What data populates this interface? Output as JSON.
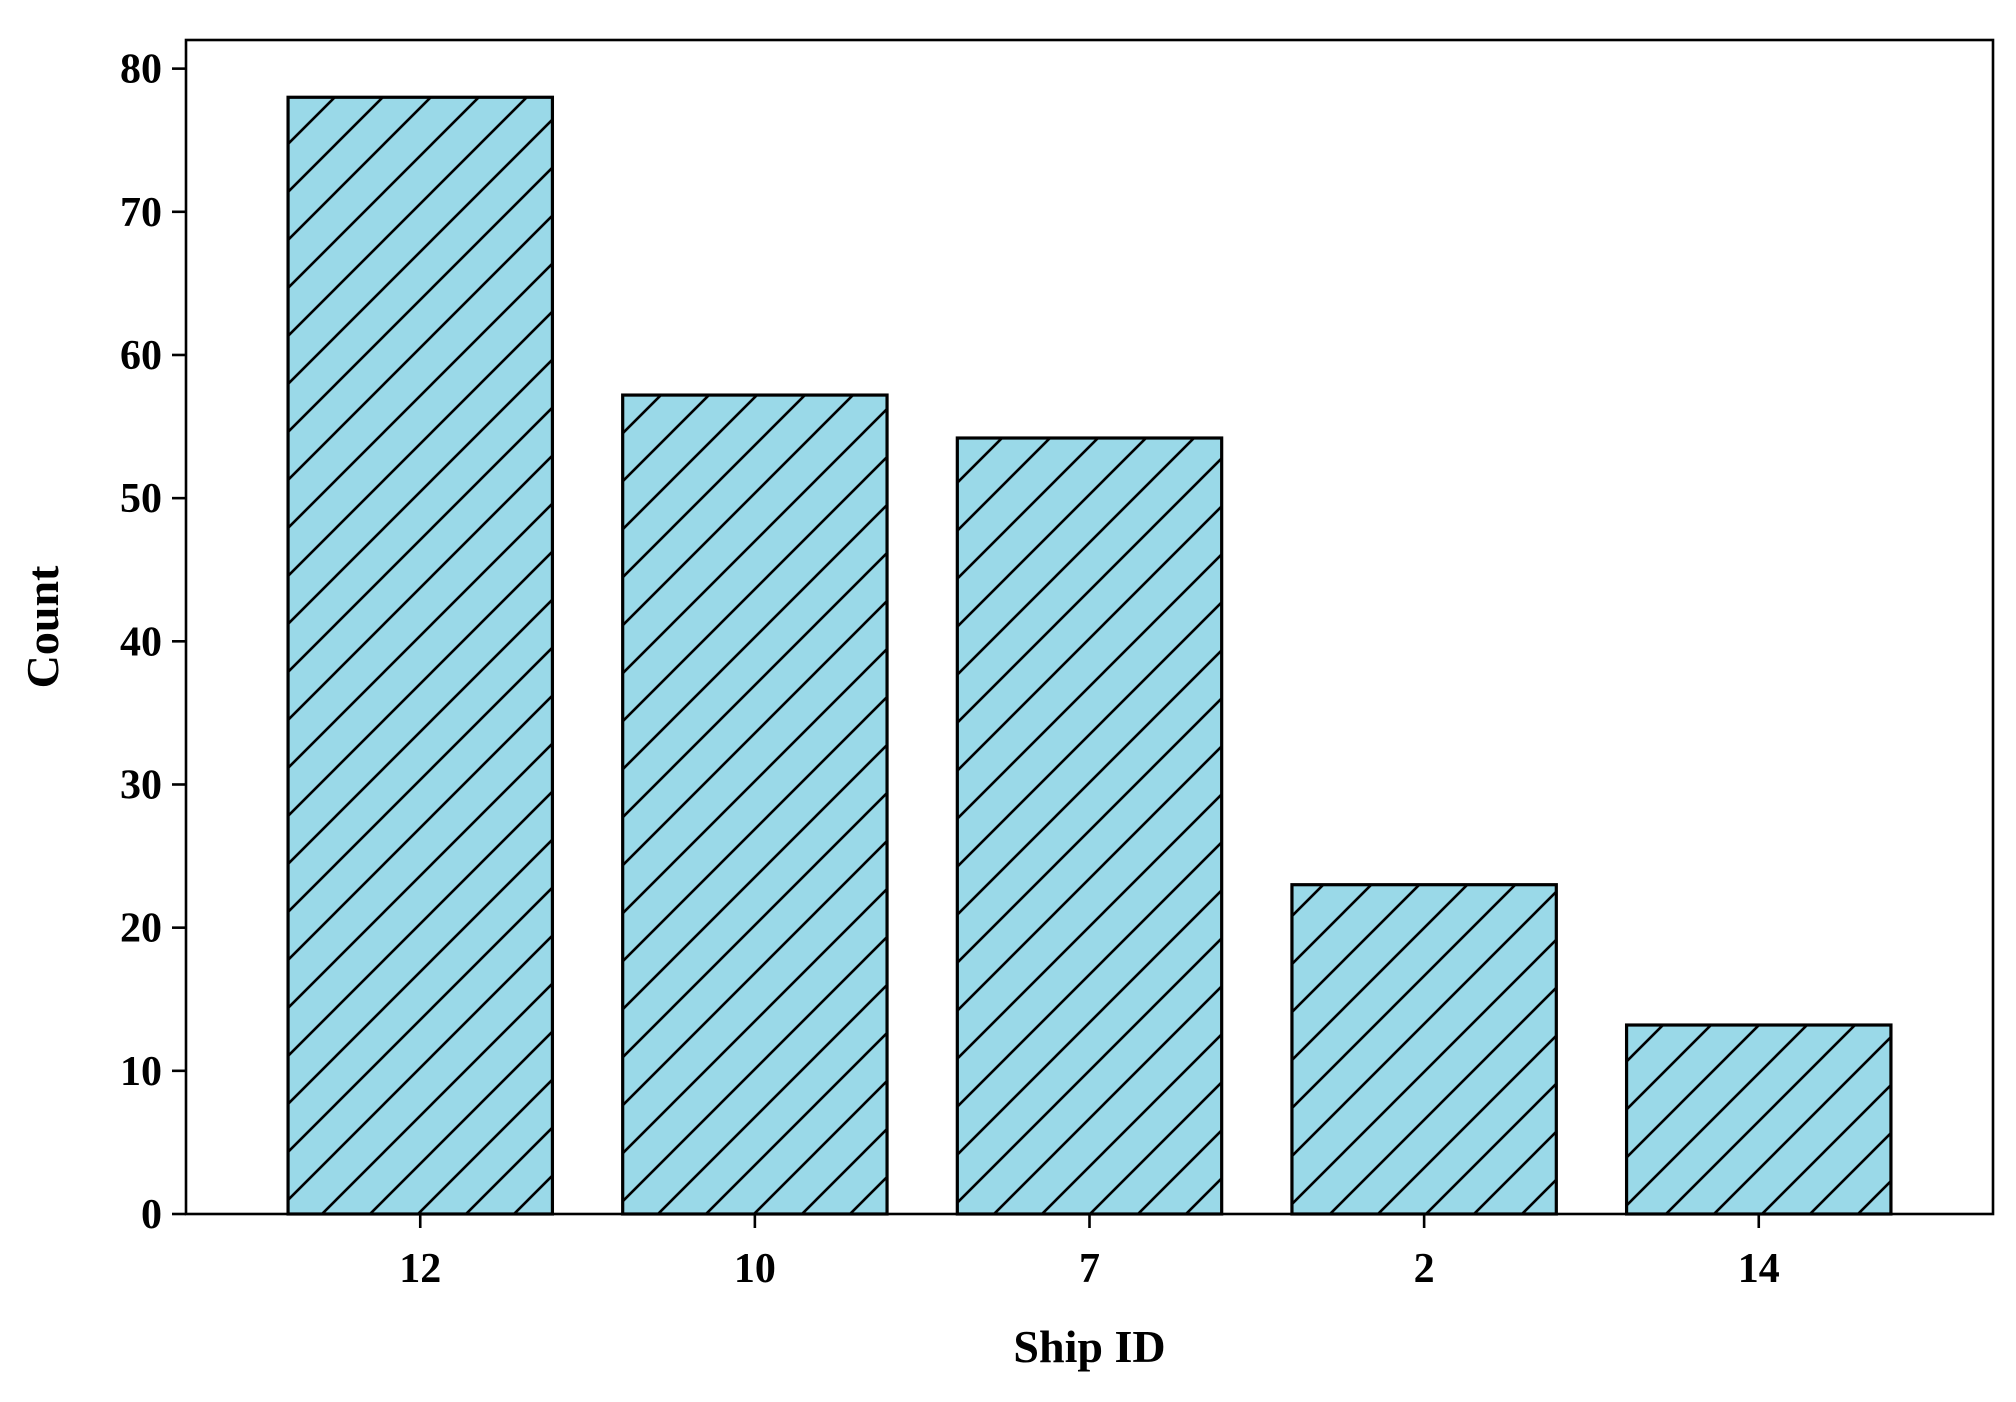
{
  "chart_data": {
    "type": "bar",
    "categories": [
      "12",
      "10",
      "7",
      "2",
      "14"
    ],
    "values": [
      78,
      57.2,
      54.2,
      23,
      13.2
    ],
    "xlabel": "Ship ID",
    "ylabel": "Count",
    "ylim": [
      0,
      82
    ],
    "yticks": [
      0,
      10,
      20,
      30,
      40,
      50,
      60,
      70,
      80
    ],
    "grid": false,
    "legend": false,
    "bar_fill": "#9ad9e8",
    "bar_edge": "#000000",
    "bar_hatch": "diagonal"
  }
}
